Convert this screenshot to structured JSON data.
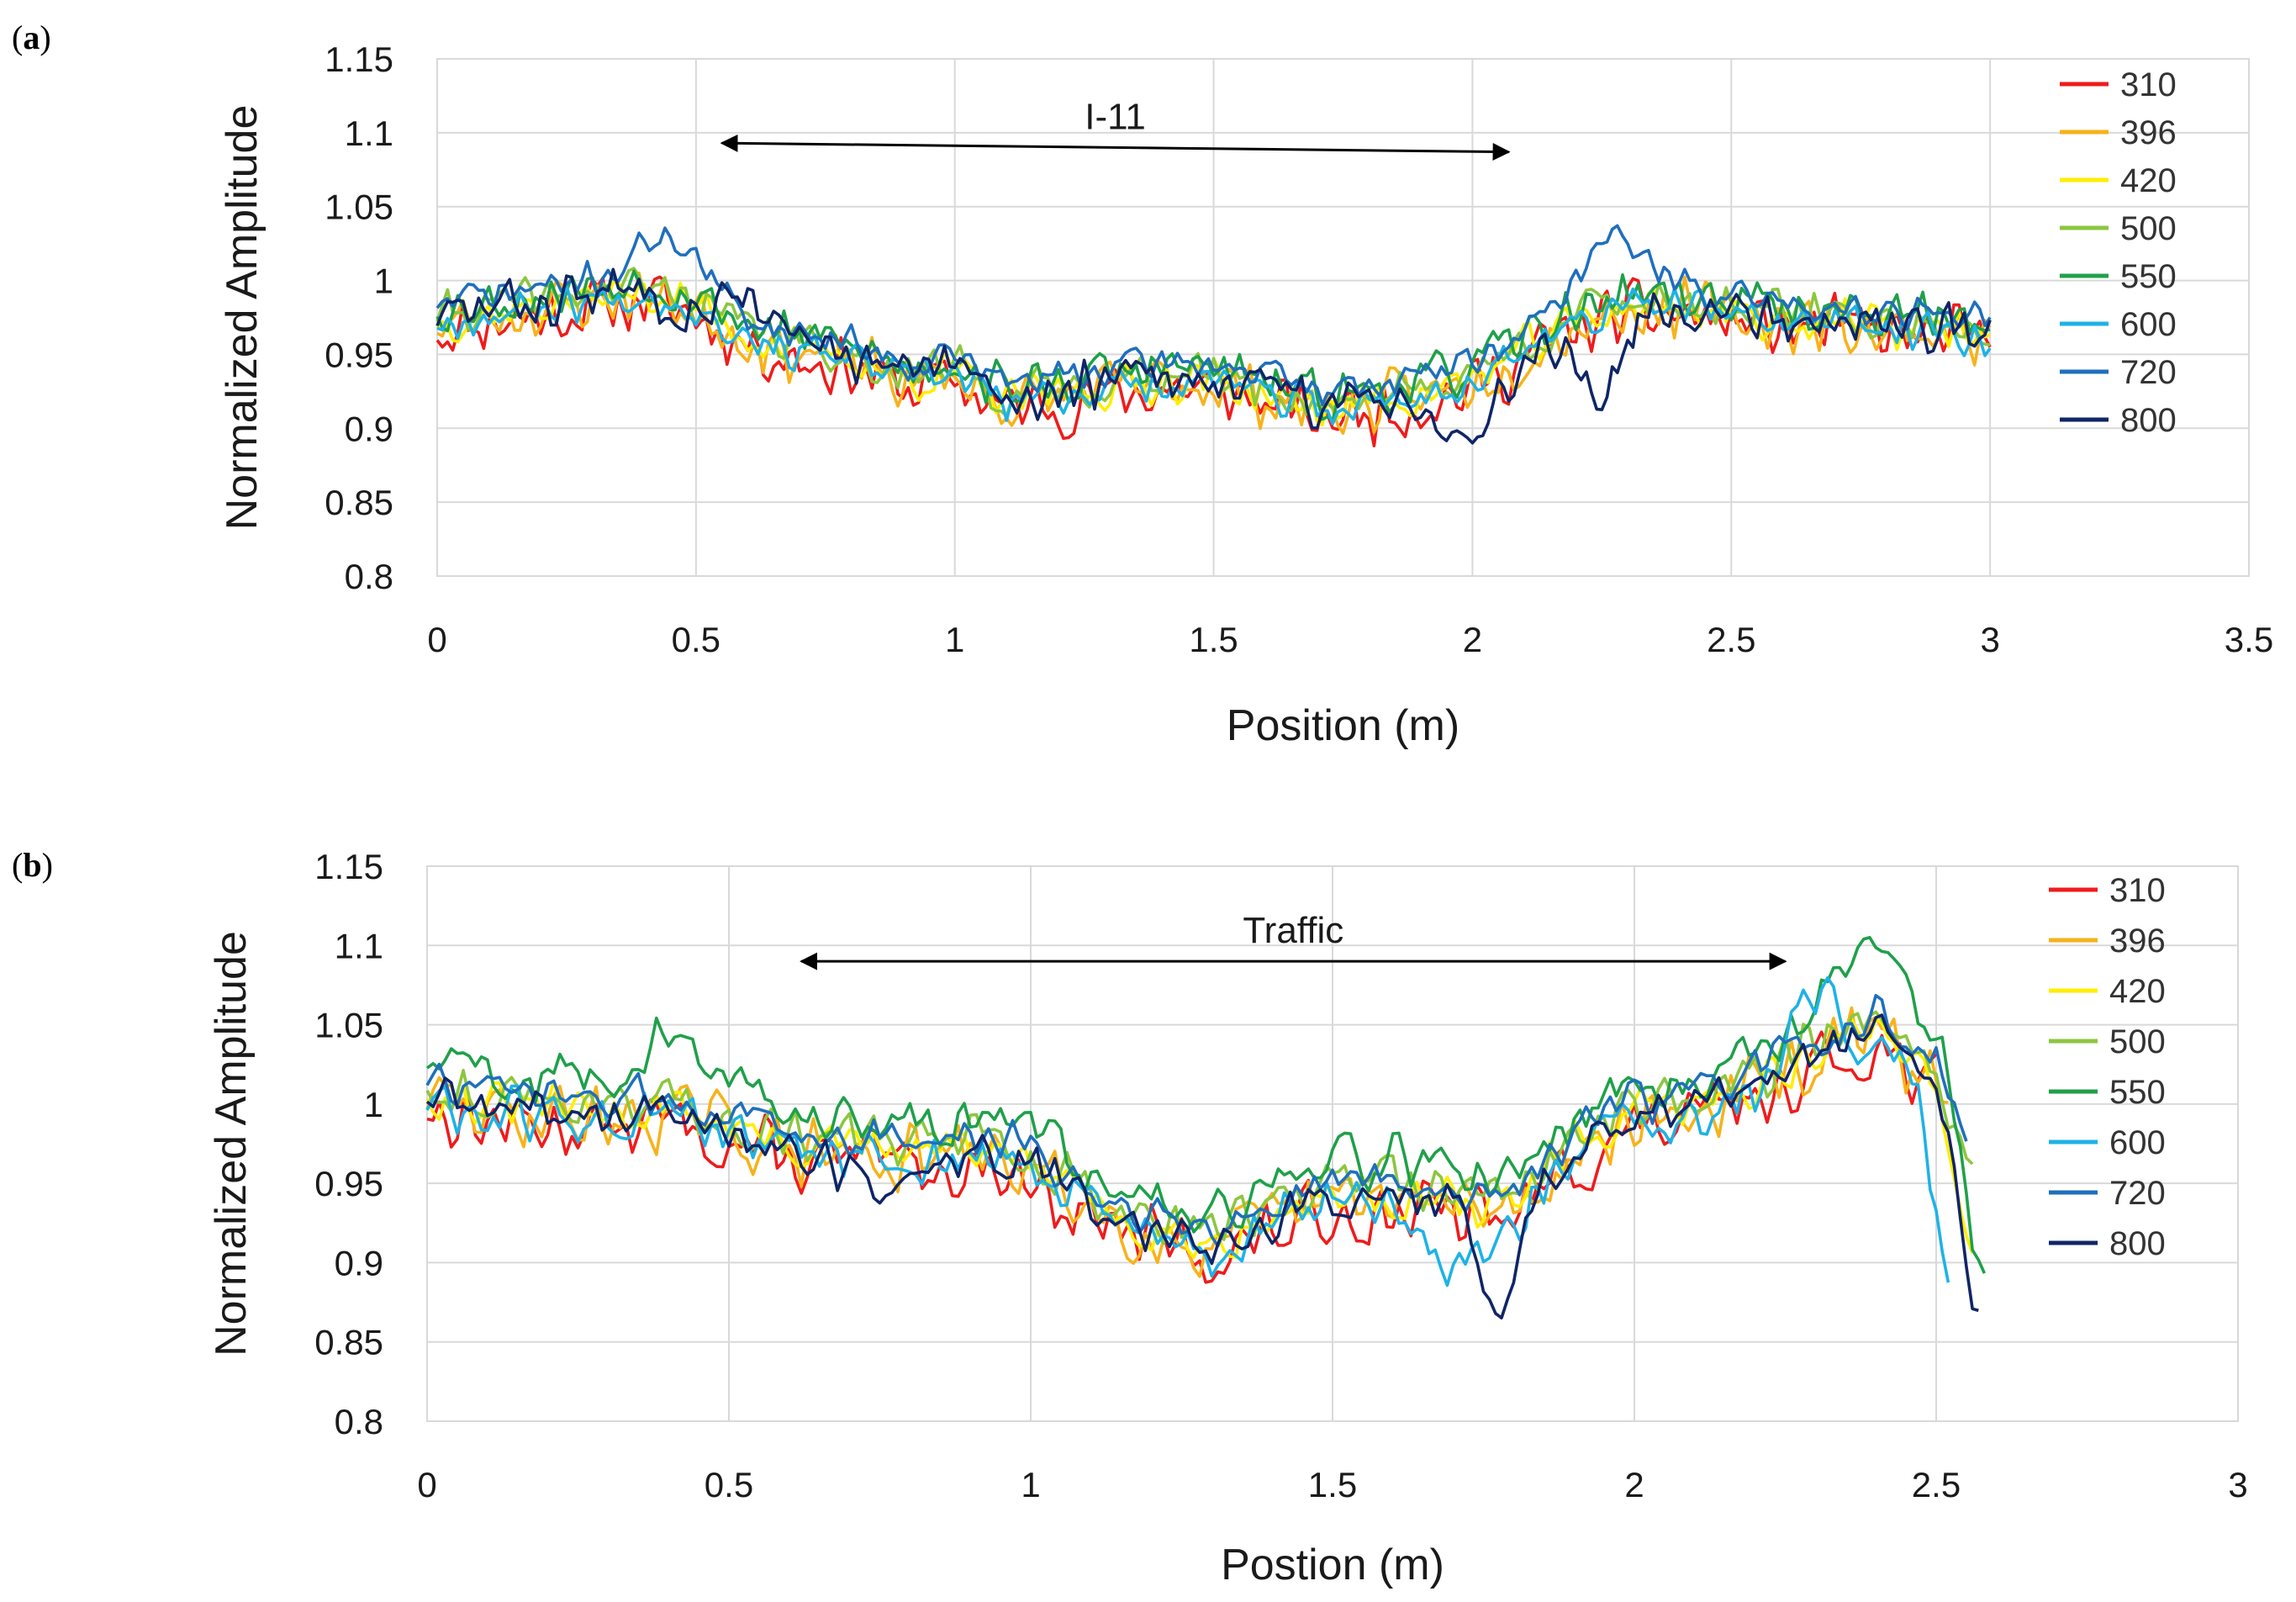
{
  "figure": {
    "panels": [
      {
        "label": "(a)",
        "label_parts": [
          "(",
          "a",
          ")"
        ]
      },
      {
        "label": "(b)",
        "label_parts": [
          "(",
          "b",
          ")"
        ]
      }
    ]
  },
  "chart_data": [
    {
      "type": "line",
      "panel": "(a)",
      "title": "",
      "xlabel": "Position (m)",
      "ylabel": "Normalized Amplitude",
      "xlim": [
        0,
        3.5
      ],
      "ylim": [
        0.8,
        1.15
      ],
      "xticks": [
        0,
        0.5,
        1,
        1.5,
        2,
        2.5,
        3,
        3.5
      ],
      "xtick_labels": [
        "0",
        "0.5",
        "1",
        "1.5",
        "2",
        "2.5",
        "3",
        "3.5"
      ],
      "yticks": [
        0.8,
        0.85,
        0.9,
        0.95,
        1,
        1.05,
        1.1,
        1.15
      ],
      "ytick_labels": [
        "0.8",
        "0.85",
        "0.9",
        "0.95",
        "1",
        "1.05",
        "1.1",
        "1.15"
      ],
      "grid": true,
      "legend_position": "right",
      "annotation": {
        "text": "I-11",
        "x_start": 0.55,
        "x_end": 2.07,
        "y_start": 1.093,
        "y_end": 1.087
      },
      "x_range": [
        0,
        3.0
      ],
      "profile": {
        "x": [
          0,
          0.1,
          0.2,
          0.3,
          0.4,
          0.5,
          0.6,
          0.7,
          0.8,
          0.9,
          1.0,
          1.1,
          1.2,
          1.3,
          1.4,
          1.5,
          1.6,
          1.7,
          1.8,
          1.9,
          2.0,
          2.1,
          2.2,
          2.3,
          2.4,
          2.5,
          2.6,
          2.7,
          2.8,
          2.9,
          3.0
        ],
        "y": [
          0.975,
          0.98,
          0.985,
          0.99,
          0.995,
          0.985,
          0.965,
          0.955,
          0.95,
          0.935,
          0.94,
          0.92,
          0.925,
          0.93,
          0.935,
          0.935,
          0.925,
          0.915,
          0.92,
          0.925,
          0.935,
          0.955,
          0.975,
          0.985,
          0.985,
          0.98,
          0.975,
          0.975,
          0.97,
          0.97,
          0.965
        ]
      },
      "series": [
        {
          "name": "310",
          "color": "#ee1c1c",
          "offset": -0.008,
          "noise": 0.026,
          "seed": 11
        },
        {
          "name": "396",
          "color": "#f7b21b",
          "offset": -0.004,
          "noise": 0.024,
          "seed": 23
        },
        {
          "name": "420",
          "color": "#ffee00",
          "offset": -0.002,
          "noise": 0.018,
          "seed": 37
        },
        {
          "name": "500",
          "color": "#8cc63f",
          "offset": 0.002,
          "noise": 0.018,
          "seed": 41
        },
        {
          "name": "550",
          "color": "#1fa04a",
          "offset": 0.006,
          "noise": 0.02,
          "seed": 53
        },
        {
          "name": "600",
          "color": "#1fb2e6",
          "offset": -0.003,
          "noise": 0.016,
          "seed": 67
        },
        {
          "name": "720",
          "color": "#1f6fbd",
          "offset": 0.01,
          "noise": 0.014,
          "seed": 71,
          "bumps": [
            {
              "x": 0.45,
              "amp": 0.03,
              "w": 0.08
            },
            {
              "x": 2.27,
              "amp": 0.035,
              "w": 0.09
            }
          ]
        },
        {
          "name": "800",
          "color": "#0f2566",
          "offset": 0.0,
          "noise": 0.022,
          "seed": 83,
          "bumps": [
            {
              "x": 0.6,
              "amp": 0.03,
              "w": 0.05
            },
            {
              "x": 2.0,
              "amp": -0.04,
              "w": 0.08
            },
            {
              "x": 2.25,
              "amp": -0.055,
              "w": 0.06
            }
          ]
        }
      ]
    },
    {
      "type": "line",
      "panel": "(b)",
      "title": "",
      "xlabel": "Postion (m)",
      "ylabel": "Normalized Amplitude",
      "xlim": [
        0,
        3
      ],
      "ylim": [
        0.8,
        1.15
      ],
      "xticks": [
        0,
        0.5,
        1,
        1.5,
        2,
        2.5,
        3
      ],
      "xtick_labels": [
        "0",
        "0.5",
        "1",
        "1.5",
        "2",
        "2.5",
        "3"
      ],
      "yticks": [
        0.8,
        0.85,
        0.9,
        0.95,
        1,
        1.05,
        1.1,
        1.15
      ],
      "ytick_labels": [
        "0.8",
        "0.85",
        "0.9",
        "0.95",
        "1",
        "1.05",
        "1.1",
        "1.15"
      ],
      "grid": true,
      "legend_position": "right",
      "annotation": {
        "text": "Traffic",
        "x_start": 0.62,
        "x_end": 2.25,
        "y_start": 1.09,
        "y_end": 1.09
      },
      "x_range": [
        0,
        2.58
      ],
      "profile": {
        "x": [
          0,
          0.1,
          0.2,
          0.3,
          0.4,
          0.5,
          0.6,
          0.7,
          0.8,
          0.9,
          1.0,
          1.1,
          1.2,
          1.3,
          1.4,
          1.5,
          1.6,
          1.7,
          1.8,
          1.9,
          2.0,
          2.1,
          2.2,
          2.3,
          2.4,
          2.5,
          2.58
        ],
        "y": [
          1.01,
          1.0,
          1.0,
          0.995,
          1.0,
          0.99,
          0.975,
          0.975,
          0.97,
          0.975,
          0.965,
          0.94,
          0.925,
          0.915,
          0.93,
          0.945,
          0.945,
          0.94,
          0.94,
          0.975,
          0.995,
          1.0,
          1.015,
          1.035,
          1.05,
          1.02,
          0.93
        ]
      },
      "series": [
        {
          "name": "310",
          "color": "#ee1c1c",
          "offset": -0.012,
          "noise": 0.026,
          "seed": 13,
          "x_end": 2.5
        },
        {
          "name": "396",
          "color": "#f7b21b",
          "offset": -0.006,
          "noise": 0.026,
          "seed": 29,
          "x_end": 2.52
        },
        {
          "name": "420",
          "color": "#ffee00",
          "offset": -0.002,
          "noise": 0.018,
          "seed": 31,
          "x_end": 2.56,
          "bumps": [
            {
              "x": 2.55,
              "amp": -0.05,
              "w": 0.03
            }
          ]
        },
        {
          "name": "500",
          "color": "#8cc63f",
          "offset": 0.004,
          "noise": 0.02,
          "seed": 43,
          "x_end": 2.56
        },
        {
          "name": "550",
          "color": "#1fa04a",
          "offset": 0.018,
          "noise": 0.02,
          "seed": 59,
          "x_end": 2.58,
          "bumps": [
            {
              "x": 0.4,
              "amp": 0.025,
              "w": 0.08
            },
            {
              "x": 2.38,
              "amp": 0.035,
              "w": 0.08
            },
            {
              "x": 2.57,
              "amp": -0.06,
              "w": 0.03
            }
          ]
        },
        {
          "name": "600",
          "color": "#1fb2e6",
          "offset": -0.008,
          "noise": 0.022,
          "seed": 61,
          "x_end": 2.52,
          "bumps": [
            {
              "x": 1.7,
              "amp": -0.03,
              "w": 0.1
            },
            {
              "x": 2.3,
              "amp": 0.04,
              "w": 0.05
            },
            {
              "x": 2.51,
              "amp": -0.1,
              "w": 0.03
            }
          ]
        },
        {
          "name": "720",
          "color": "#1f6fbd",
          "offset": 0.006,
          "noise": 0.016,
          "seed": 73,
          "x_end": 2.55
        },
        {
          "name": "800",
          "color": "#0f2566",
          "offset": -0.004,
          "noise": 0.018,
          "seed": 89,
          "x_end": 2.57,
          "bumps": [
            {
              "x": 0.75,
              "amp": -0.02,
              "w": 0.1
            },
            {
              "x": 1.78,
              "amp": -0.07,
              "w": 0.04
            },
            {
              "x": 2.56,
              "amp": -0.08,
              "w": 0.03
            }
          ]
        }
      ]
    }
  ]
}
